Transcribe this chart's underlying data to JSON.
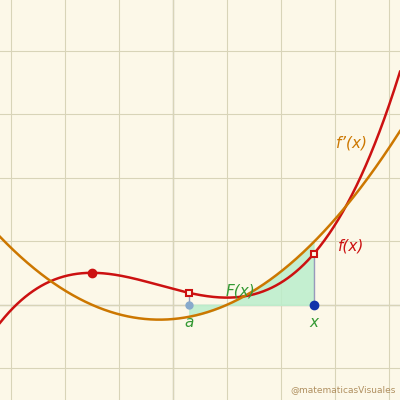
{
  "background_color": "#fcf8e8",
  "grid_color": "#d8d4b8",
  "xlim": [
    -3.2,
    4.2
  ],
  "ylim": [
    -1.5,
    4.8
  ],
  "fx_color": "#cc1111",
  "fpx_color": "#cc7700",
  "fill_color": "#bbeecc",
  "fill_alpha": 0.85,
  "a_val": 0.3,
  "x_val": 2.6,
  "label_fx": "f(x)",
  "label_fpx": "f’(x)",
  "label_Fx": "F(x)",
  "label_a": "a",
  "label_x": "x",
  "watermark": "@matematicasVisuales",
  "label_color_green": "#339933",
  "label_color_orange": "#cc7700",
  "axis_color": "#aaaaaa",
  "vert_line_color": "#9999bb",
  "figsize": [
    4.0,
    4.0
  ],
  "dpi": 100
}
